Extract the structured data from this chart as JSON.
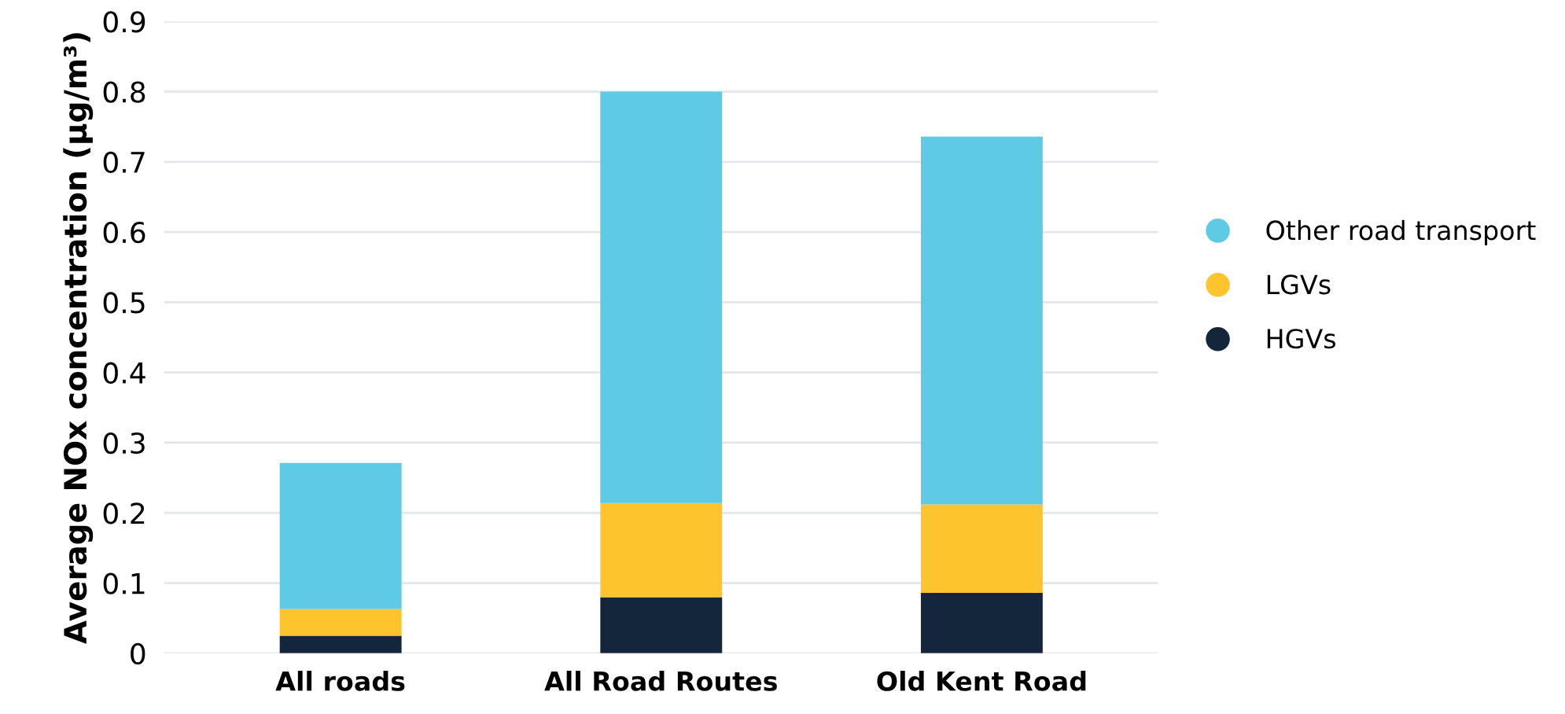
{
  "chart_data": {
    "type": "bar",
    "stacked": true,
    "ylabel": "Average NOx concentration (µg/m³)",
    "categories": [
      "All roads",
      "All Road Routes",
      "Old Kent Road"
    ],
    "series": [
      {
        "name": "HGVs",
        "color": "#13263b",
        "values": [
          0.025,
          0.08,
          0.086
        ]
      },
      {
        "name": "LGVs",
        "color": "#fec42d",
        "values": [
          0.038,
          0.134,
          0.126
        ]
      },
      {
        "name": "Other road transport",
        "color": "#5ecae4",
        "values": [
          0.208,
          0.586,
          0.524
        ]
      }
    ],
    "ylim": [
      0,
      0.9
    ],
    "yticks": [
      0,
      0.1,
      0.2,
      0.3,
      0.4,
      0.5,
      0.6,
      0.7,
      0.8,
      0.9
    ],
    "grid": "y",
    "legend": "right"
  }
}
